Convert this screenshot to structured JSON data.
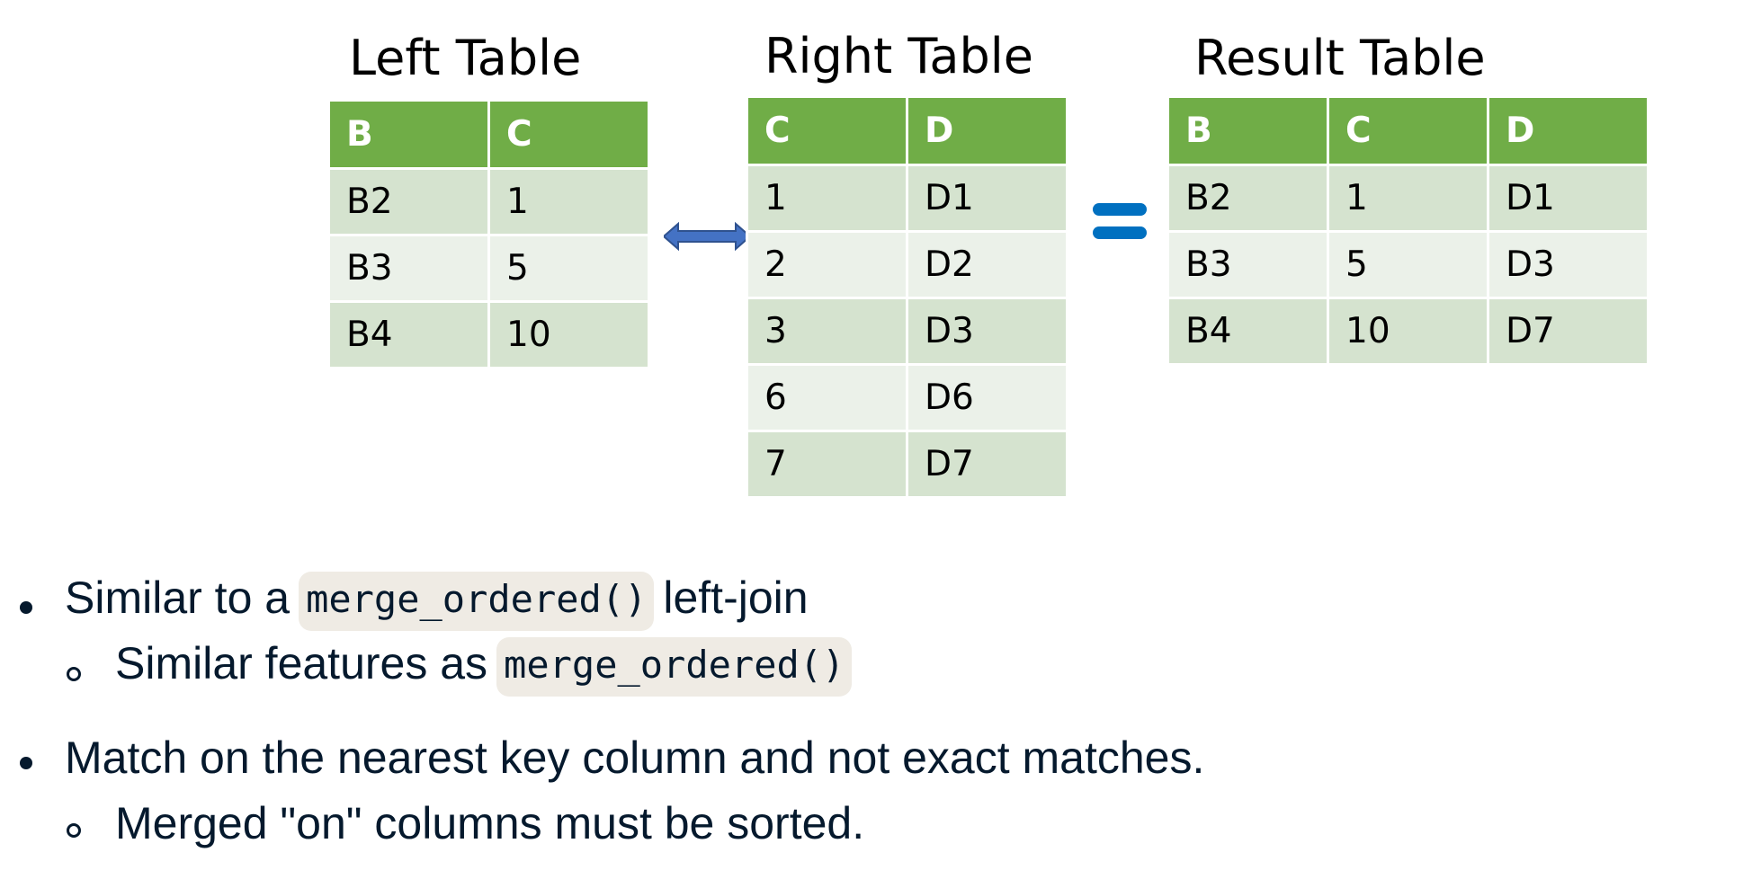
{
  "left_table": {
    "title": "Left Table",
    "headers": [
      "B",
      "C"
    ],
    "rows": [
      [
        "B2",
        "1"
      ],
      [
        "B3",
        "5"
      ],
      [
        "B4",
        "10"
      ]
    ]
  },
  "right_table": {
    "title": "Right Table",
    "headers": [
      "C",
      "D"
    ],
    "rows": [
      [
        "1",
        "D1"
      ],
      [
        "2",
        "D2"
      ],
      [
        "3",
        "D3"
      ],
      [
        "6",
        "D6"
      ],
      [
        "7",
        "D7"
      ]
    ]
  },
  "result_table": {
    "title": "Result Table",
    "headers": [
      "B",
      "C",
      "D"
    ],
    "rows": [
      [
        "B2",
        "1",
        "D1"
      ],
      [
        "B3",
        "5",
        "D3"
      ],
      [
        "B4",
        "10",
        "D7"
      ]
    ]
  },
  "icons": {
    "join_arrow": "double-headed-arrow-icon",
    "equals_sign": "equals-icon",
    "arrow_color": "#4472c4",
    "equals_color": "#0070c0",
    "header_color": "#70ad47"
  },
  "bullets": [
    {
      "text_before": "Similar to a",
      "code": "merge_ordered()",
      "text_after": "left-join"
    },
    {
      "text_before": "Similar features as",
      "code": "merge_ordered()",
      "text_after": ""
    },
    {
      "text_before": "Match on the nearest key column and not exact matches.",
      "code": "",
      "text_after": ""
    },
    {
      "text_before": "Merged \"on\" columns must be sorted.",
      "code": "",
      "text_after": ""
    }
  ]
}
